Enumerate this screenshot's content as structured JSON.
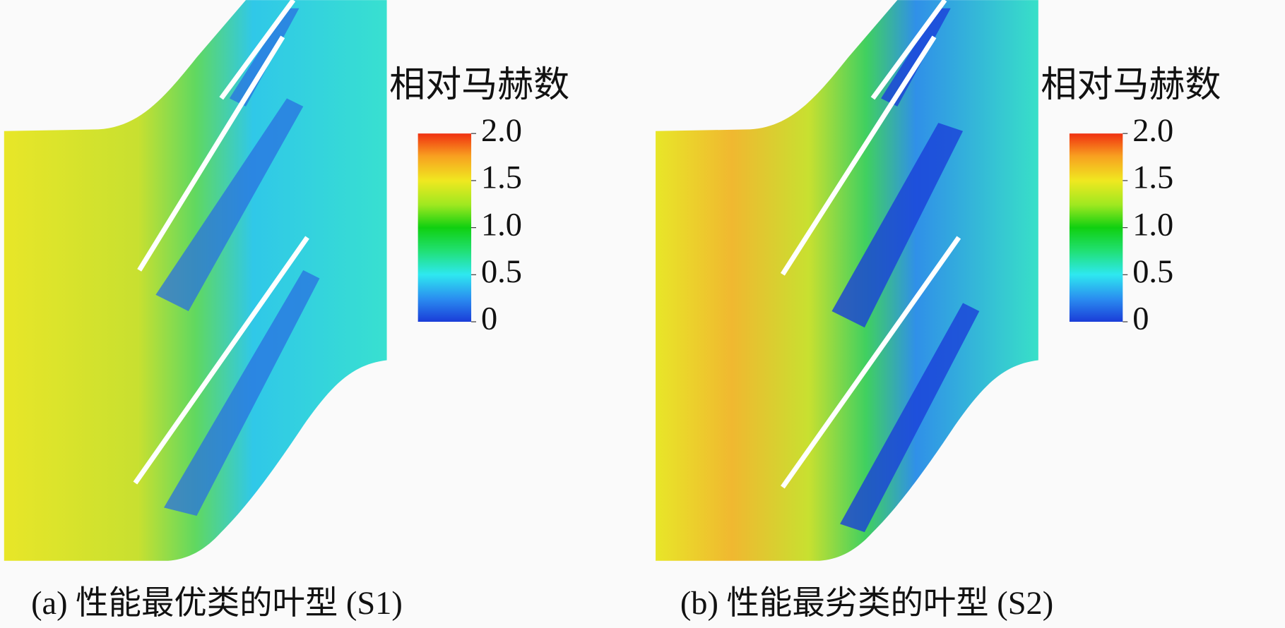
{
  "panels": [
    {
      "legend_title": "相对马赫数",
      "caption": "(a) 性能最优类的叶型 (S1)",
      "colorbar": {
        "range": [
          0,
          2
        ],
        "ticks": [
          {
            "value": 2,
            "label": "2.0"
          },
          {
            "value": 1.5,
            "label": "1.5"
          },
          {
            "value": 1,
            "label": "1.0"
          },
          {
            "value": 0.5,
            "label": "0.5"
          },
          0
        ]
      }
    },
    {
      "legend_title": "相对马赫数",
      "caption": "(b) 性能最劣类的叶型 (S2)",
      "colorbar": {
        "range": [
          0,
          2
        ],
        "ticks": [
          {
            "value": 2,
            "label": "2.0"
          },
          {
            "value": 1.5,
            "label": "1.5"
          },
          {
            "value": 1,
            "label": "1.0"
          },
          {
            "value": 0.5,
            "label": "0.5"
          },
          0
        ]
      }
    }
  ]
}
